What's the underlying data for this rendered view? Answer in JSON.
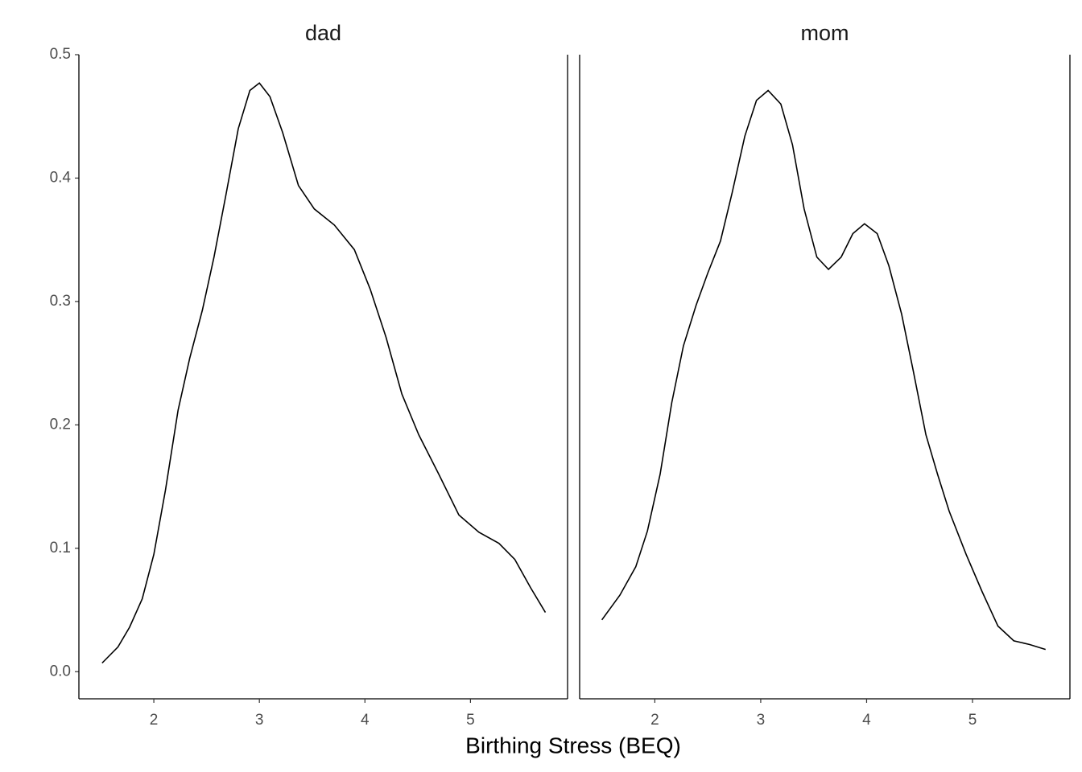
{
  "chart_data": {
    "type": "line",
    "xlabel": "Birthing Stress (BEQ)",
    "xlim": [
      1.29,
      5.92
    ],
    "xticks": [
      2,
      3,
      4,
      5
    ],
    "ylim": [
      -0.022,
      0.5
    ],
    "yticks": [
      {
        "value": 0,
        "label": "0.0"
      },
      0.1,
      0.2,
      0.3,
      0.4,
      0.5
    ],
    "color": "#000000",
    "facets": [
      {
        "title": "dad",
        "x": [
          1.51,
          1.66,
          1.77,
          1.89,
          2.0,
          2.11,
          2.23,
          2.34,
          2.46,
          2.57,
          2.68,
          2.8,
          2.91,
          3.0,
          3.1,
          3.22,
          3.37,
          3.52,
          3.71,
          3.9,
          4.05,
          4.2,
          4.35,
          4.51,
          4.7,
          4.89,
          5.08,
          5.27,
          5.42,
          5.57,
          5.71
        ],
        "values": [
          0.007,
          0.02,
          0.036,
          0.059,
          0.095,
          0.147,
          0.212,
          0.254,
          0.293,
          0.336,
          0.385,
          0.44,
          0.471,
          0.477,
          0.466,
          0.437,
          0.394,
          0.375,
          0.362,
          0.342,
          0.31,
          0.271,
          0.225,
          0.192,
          0.16,
          0.127,
          0.113,
          0.104,
          0.091,
          0.068,
          0.048
        ]
      },
      {
        "title": "mom",
        "x": [
          1.5,
          1.67,
          1.82,
          1.93,
          2.05,
          2.16,
          2.27,
          2.39,
          2.5,
          2.62,
          2.73,
          2.85,
          2.96,
          3.07,
          3.19,
          3.3,
          3.41,
          3.53,
          3.64,
          3.76,
          3.87,
          3.98,
          4.1,
          4.21,
          4.33,
          4.44,
          4.56,
          4.67,
          4.78,
          4.94,
          5.09,
          5.24,
          5.39,
          5.54,
          5.69
        ],
        "values": [
          0.042,
          0.062,
          0.085,
          0.114,
          0.16,
          0.218,
          0.264,
          0.297,
          0.323,
          0.349,
          0.388,
          0.434,
          0.463,
          0.471,
          0.46,
          0.427,
          0.375,
          0.336,
          0.326,
          0.336,
          0.355,
          0.363,
          0.355,
          0.329,
          0.29,
          0.244,
          0.192,
          0.16,
          0.13,
          0.095,
          0.065,
          0.037,
          0.025,
          0.022,
          0.018
        ]
      }
    ]
  }
}
